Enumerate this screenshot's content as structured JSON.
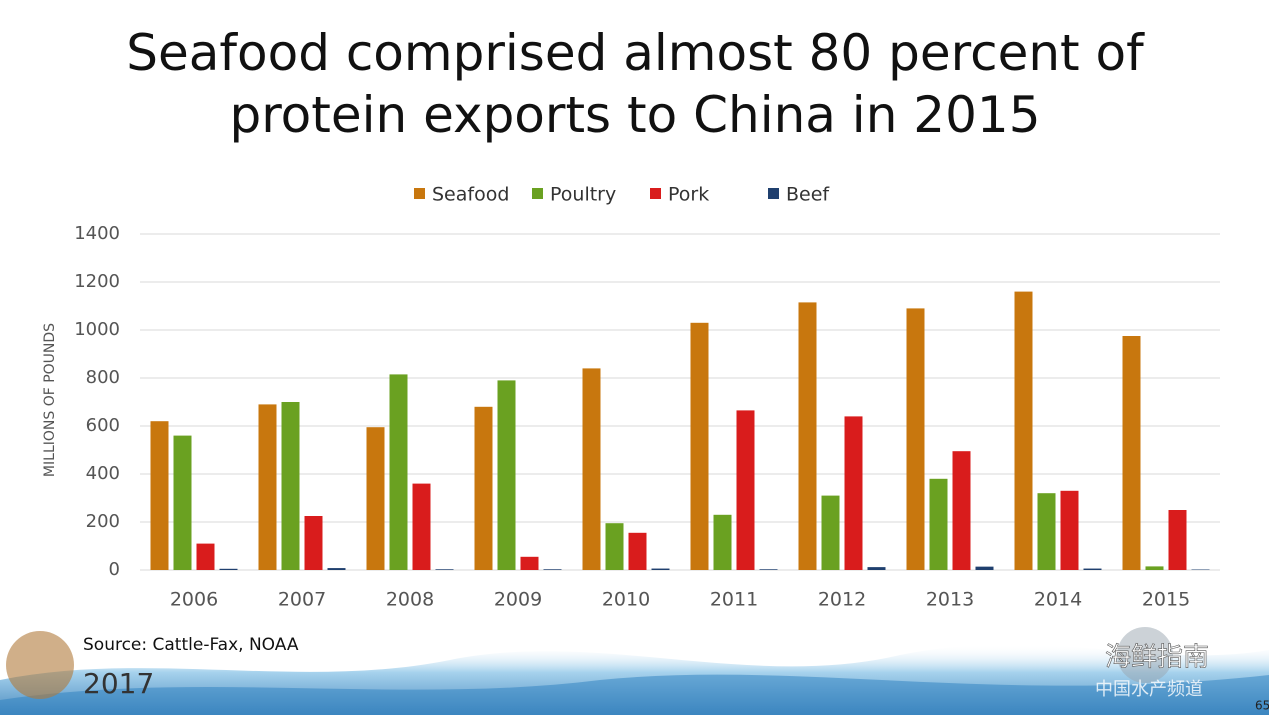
{
  "chart_data": {
    "type": "bar",
    "title": "Seafood comprised almost 80 percent of protein exports to China in 2015",
    "y_label": "MILLIONS OF POUNDS",
    "categories": [
      "2006",
      "2007",
      "2008",
      "2009",
      "2010",
      "2011",
      "2012",
      "2013",
      "2014",
      "2015"
    ],
    "series": [
      {
        "name": "Seafood",
        "color": "#c8770e",
        "values": [
          620,
          690,
          595,
          680,
          840,
          1030,
          1115,
          1090,
          1160,
          975
        ]
      },
      {
        "name": "Poultry",
        "color": "#6aa121",
        "values": [
          560,
          700,
          815,
          790,
          195,
          230,
          310,
          380,
          320,
          15
        ]
      },
      {
        "name": "Pork",
        "color": "#d91c1c",
        "values": [
          110,
          225,
          360,
          55,
          155,
          665,
          640,
          495,
          330,
          250
        ]
      },
      {
        "name": "Beef",
        "color": "#1f3f6e",
        "values": [
          5,
          8,
          3,
          3,
          6,
          3,
          12,
          14,
          6,
          2
        ]
      }
    ],
    "ylim": [
      0,
      1400
    ],
    "yticks": [
      0,
      200,
      400,
      600,
      800,
      1000,
      1200,
      1400
    ],
    "grid": true,
    "legend": "top"
  },
  "footer": {
    "source": "Source:  Cattle-Fax, NOAA",
    "year": "2017",
    "watermark_1": "海鲜指南",
    "watermark_2": "中国水产频道",
    "page_number": "65"
  }
}
